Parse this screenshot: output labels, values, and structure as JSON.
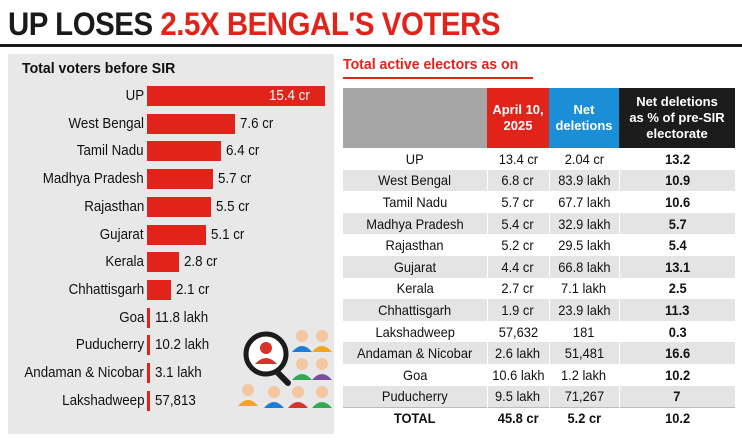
{
  "headline": {
    "part1": "UP LOSES ",
    "part2": "2.5X BENGAL'S VOTERS"
  },
  "left_title": "Total voters before SIR",
  "right_title": "Total active electors as on",
  "table_headers": {
    "state": "",
    "april": [
      "April 10,",
      "2025"
    ],
    "net": [
      "Net",
      "deletions"
    ],
    "pct": [
      "Net deletions",
      "as % of pre-SIR",
      "electorate"
    ]
  },
  "colors": {
    "accent_red": "#e2231a",
    "accent_blue": "#1a8fd8",
    "header_black": "#1c1c1c",
    "header_grey": "#a6a6a6",
    "panel_grey": "#e8e8e8"
  },
  "icons": [
    "magnifier-person-icon",
    "crowd-icon"
  ],
  "chart_data": [
    {
      "type": "bar",
      "orientation": "horizontal",
      "title": "Total voters before SIR",
      "unit": "crore",
      "categories": [
        "UP",
        "West Bengal",
        "Tamil Nadu",
        "Madhya Pradesh",
        "Rajasthan",
        "Gujarat",
        "Kerala",
        "Chhattisgarh",
        "Goa",
        "Puducherry",
        "Andaman & Nicobar",
        "Lakshadweep"
      ],
      "values": [
        15.4,
        7.6,
        6.4,
        5.7,
        5.5,
        5.1,
        2.8,
        2.1,
        0.118,
        0.102,
        0.031,
        0.00057813
      ],
      "value_labels": [
        "15.4 cr",
        "7.6 cr",
        "6.4 cr",
        "5.7 cr",
        "5.5 cr",
        "5.1 cr",
        "2.8 cr",
        "2.1 cr",
        "11.8 lakh",
        "10.2 lakh",
        "3.1 lakh",
        "57,813"
      ],
      "xlim": [
        0,
        15.4
      ],
      "grid": false,
      "legend": "none"
    },
    {
      "type": "table",
      "title": "Total active electors as on",
      "columns": [
        "",
        "April 10, 2025",
        "Net deletions",
        "Net deletions as % of pre-SIR electorate"
      ],
      "rows": [
        [
          "UP",
          "13.4 cr",
          "2.04 cr",
          "13.2"
        ],
        [
          "West Bengal",
          "6.8 cr",
          "83.9 lakh",
          "10.9"
        ],
        [
          "Tamil Nadu",
          "5.7 cr",
          "67.7 lakh",
          "10.6"
        ],
        [
          "Madhya Pradesh",
          "5.4 cr",
          "32.9 lakh",
          "5.7"
        ],
        [
          "Rajasthan",
          "5.2 cr",
          "29.5 lakh",
          "5.4"
        ],
        [
          "Gujarat",
          "4.4 cr",
          "66.8 lakh",
          "13.1"
        ],
        [
          "Kerala",
          "2.7 cr",
          "7.1 lakh",
          "2.5"
        ],
        [
          "Chhattisgarh",
          "1.9 cr",
          "23.9 lakh",
          "11.3"
        ],
        [
          "Lakshadweep",
          "57,632",
          "181",
          "0.3"
        ],
        [
          "Andaman & Nicobar",
          "2.6 lakh",
          "51,481",
          "16.6"
        ],
        [
          "Goa",
          "10.6 lakh",
          "1.2 lakh",
          "10.2"
        ],
        [
          "Puducherry",
          "9.5 lakh",
          "71,267",
          "7"
        ]
      ],
      "total": [
        "TOTAL",
        "45.8 cr",
        "5.2 cr",
        "10.2"
      ]
    }
  ]
}
